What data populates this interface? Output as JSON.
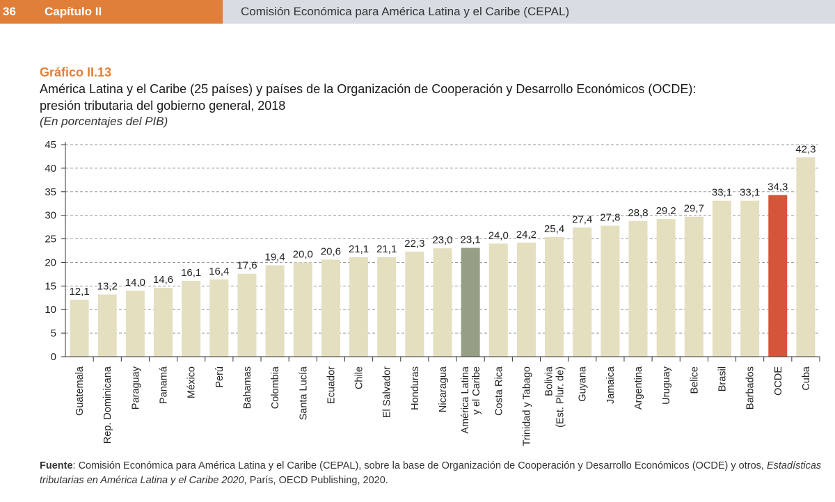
{
  "header": {
    "page_number": "36",
    "chapter": "Capítulo II",
    "publisher": "Comisión Económica para América Latina y el Caribe (CEPAL)"
  },
  "figure": {
    "label": "Gráfico II.13",
    "title_line1": "América Latina y el Caribe (25 países) y países de la Organización de Cooperación y Desarrollo Económicos (OCDE):",
    "title_line2": "presión tributaria del gobierno general, 2018",
    "subtitle": "(En porcentajes del PIB)"
  },
  "source": {
    "label": "Fuente",
    "text1": ": Comisión Económica para América Latina y el Caribe (CEPAL), sobre la base de Organización de Cooperación y Desarrollo Económicos (OCDE) y otros, ",
    "italic1": "Estadísticas tributarias en América Latina y el Caribe 2020",
    "text2": ", París, OECD Publishing, 2020."
  },
  "colors": {
    "bar_default": "#e4dfbf",
    "bar_regional": "#969f86",
    "bar_ocde": "#d4553a",
    "grid": "#9a9a9a",
    "axis": "#333333"
  },
  "chart_data": {
    "type": "bar",
    "categories": [
      "Guatemala",
      "Rep. Dominicana",
      "Paraguay",
      "Panamá",
      "México",
      "Perú",
      "Bahamas",
      "Colombia",
      "Santa Lucía",
      "Ecuador",
      "Chile",
      "El Salvador",
      "Honduras",
      "Nicaragua",
      "América Latina|y el Caribe",
      "Costa Rica",
      "Trinidad y Tabago",
      "Bolivia|(Est. Plur. de)",
      "Guyana",
      "Jamaica",
      "Argentina",
      "Uruguay",
      "Belice",
      "Brasil",
      "Barbados",
      "OCDE",
      "Cuba"
    ],
    "values": [
      12.1,
      13.2,
      14.0,
      14.6,
      16.1,
      16.4,
      17.6,
      19.4,
      20.0,
      20.6,
      21.1,
      21.1,
      22.3,
      23.0,
      23.1,
      24.0,
      24.2,
      25.4,
      27.4,
      27.8,
      28.8,
      29.2,
      29.7,
      33.1,
      33.1,
      34.3,
      42.3
    ],
    "value_labels": [
      "12,1",
      "13,2",
      "14,0",
      "14,6",
      "16,1",
      "16,4",
      "17,6",
      "19,4",
      "20,0",
      "20,6",
      "21,1",
      "21,1",
      "22,3",
      "23,0",
      "23,1",
      "24,0",
      "24,2",
      "25,4",
      "27,4",
      "27,8",
      "28,8",
      "29,2",
      "29,7",
      "33,1",
      "33,1",
      "34,3",
      "42,3"
    ],
    "highlight": {
      "América Latina|y el Caribe": "regional",
      "OCDE": "ocde"
    },
    "ylim": [
      0,
      45
    ],
    "yticks": [
      0,
      5,
      10,
      15,
      20,
      25,
      30,
      35,
      40,
      45
    ],
    "grid": true,
    "xlabel": "",
    "ylabel": ""
  }
}
